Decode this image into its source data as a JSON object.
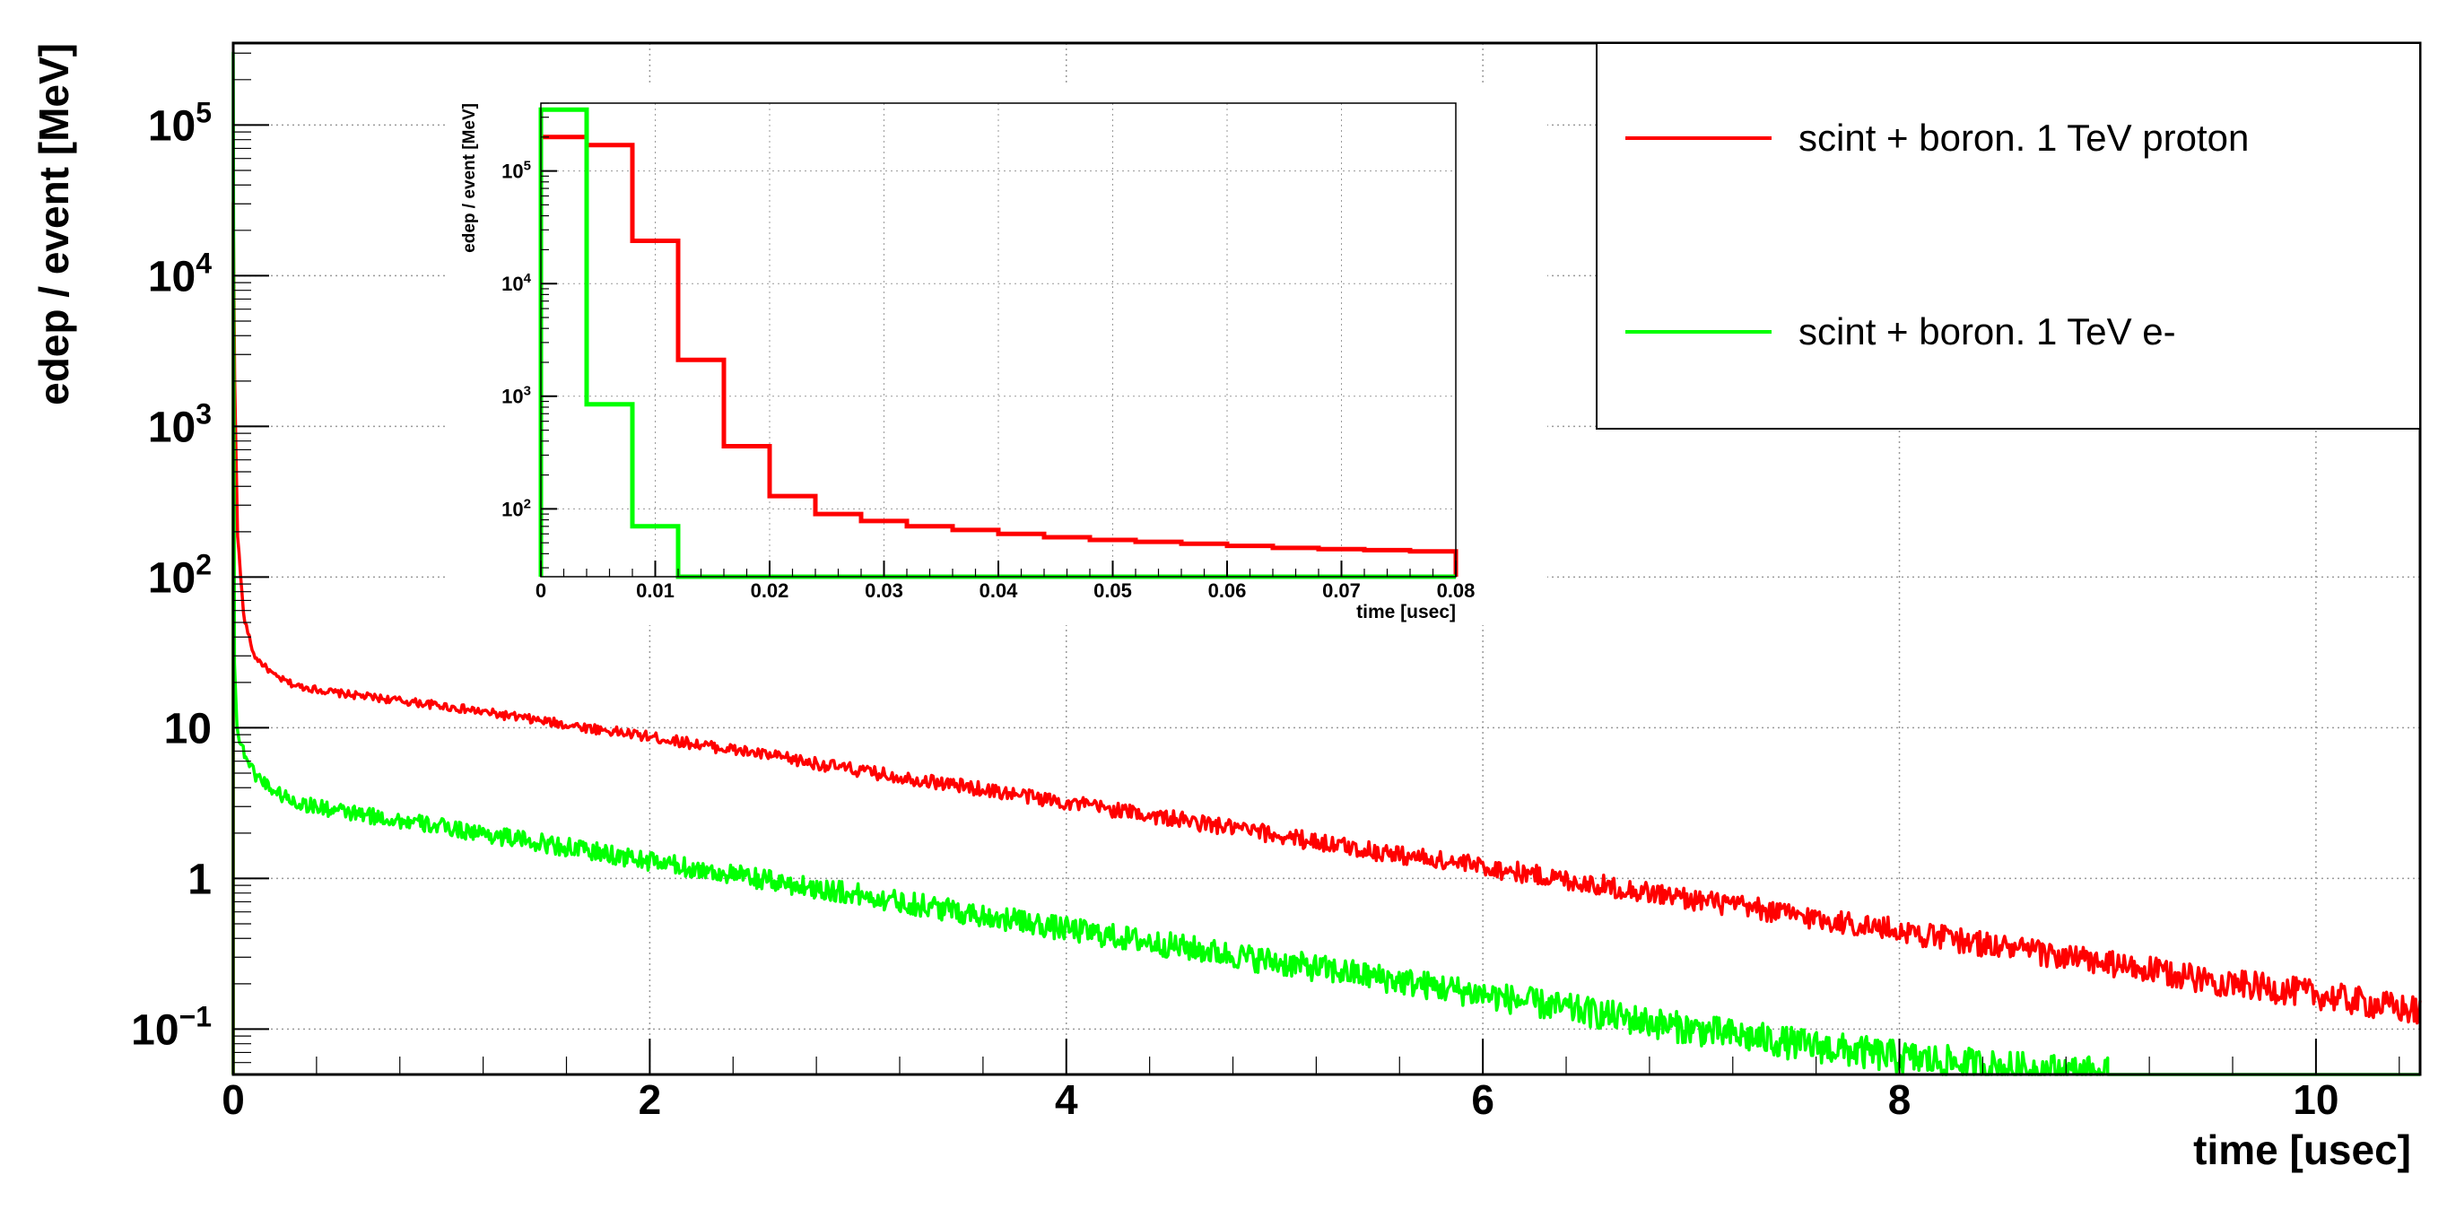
{
  "chart_data": [
    {
      "type": "line",
      "role": "main",
      "xlabel": "time [usec]",
      "ylabel": "edep / event [MeV]",
      "xlim": [
        0,
        10.5
      ],
      "ylim": [
        0.05,
        350000
      ],
      "yscale": "log",
      "grid": true,
      "x_ticks": [
        0,
        2,
        4,
        6,
        8,
        10
      ],
      "x_tick_labels": [
        "0",
        "2",
        "4",
        "6",
        "8",
        "10"
      ],
      "y_ticks": [
        0.1,
        1,
        10,
        100,
        1000,
        10000,
        100000
      ],
      "y_tick_labels": [
        {
          "base": "10",
          "exp": "−1"
        },
        {
          "base": "1",
          "exp": ""
        },
        {
          "base": "10",
          "exp": ""
        },
        {
          "base": "10",
          "exp": "2"
        },
        {
          "base": "10",
          "exp": "3"
        },
        {
          "base": "10",
          "exp": "4"
        },
        {
          "base": "10",
          "exp": "5"
        }
      ],
      "legend_position": "top-right",
      "series": [
        {
          "name": "scint + boron. 1 TeV proton",
          "color": "#ff0000",
          "x": [
            0,
            0.005,
            0.02,
            0.05,
            0.1,
            0.2,
            0.3,
            0.5,
            1,
            1.5,
            2,
            2.5,
            3,
            3.5,
            4,
            4.5,
            5,
            5.5,
            6,
            6.5,
            7,
            7.5,
            8,
            8.5,
            9,
            9.5,
            10,
            10.5
          ],
          "y": [
            30000,
            3000,
            200,
            55,
            30,
            22,
            19,
            17,
            14,
            11,
            8.7,
            6.8,
            5.2,
            4.1,
            3.2,
            2.5,
            1.95,
            1.5,
            1.2,
            0.93,
            0.73,
            0.57,
            0.45,
            0.35,
            0.27,
            0.21,
            0.17,
            0.13
          ]
        },
        {
          "name": "scint + boron. 1 TeV e-",
          "color": "#00ff00",
          "x": [
            0,
            0.005,
            0.02,
            0.05,
            0.1,
            0.2,
            0.3,
            0.5,
            1,
            1.5,
            2,
            2.5,
            3,
            3.5,
            4,
            4.5,
            5,
            5.5,
            6,
            6.5,
            7,
            7.5,
            8,
            8.5,
            9
          ],
          "y": [
            300000,
            30,
            9,
            7,
            5,
            3.8,
            3.2,
            2.8,
            2.2,
            1.7,
            1.3,
            1.0,
            0.78,
            0.6,
            0.46,
            0.36,
            0.28,
            0.22,
            0.17,
            0.13,
            0.1,
            0.08,
            0.065,
            0.055,
            0.05
          ]
        }
      ]
    },
    {
      "type": "line",
      "role": "inset",
      "xlabel": "time [usec]",
      "ylabel": "edep / event [MeV]",
      "xlim": [
        0,
        0.08
      ],
      "ylim": [
        25,
        400000
      ],
      "yscale": "log",
      "grid": true,
      "x_ticks": [
        0,
        0.01,
        0.02,
        0.03,
        0.04,
        0.05,
        0.06,
        0.07,
        0.08
      ],
      "x_tick_labels": [
        "0",
        "0.01",
        "0.02",
        "0.03",
        "0.04",
        "0.05",
        "0.06",
        "0.07",
        "0.08"
      ],
      "y_ticks": [
        100,
        1000,
        10000,
        100000
      ],
      "y_tick_labels": [
        {
          "base": "10",
          "exp": "2"
        },
        {
          "base": "10",
          "exp": "3"
        },
        {
          "base": "10",
          "exp": "4"
        },
        {
          "base": "10",
          "exp": "5"
        }
      ],
      "series": [
        {
          "name": "scint + boron. 1 TeV proton",
          "color": "#ff0000",
          "bin_edges": [
            0,
            0.004,
            0.008,
            0.012,
            0.016,
            0.02,
            0.024,
            0.028,
            0.032,
            0.036,
            0.04,
            0.044,
            0.048,
            0.052,
            0.056,
            0.06,
            0.064,
            0.068,
            0.072,
            0.076,
            0.08
          ],
          "values": [
            200000,
            170000,
            24000,
            2100,
            360,
            130,
            90,
            78,
            70,
            65,
            60,
            56,
            53,
            51,
            49,
            47,
            45,
            44,
            43,
            42
          ]
        },
        {
          "name": "scint + boron. 1 TeV e-",
          "color": "#00ff00",
          "bin_edges": [
            0,
            0.004,
            0.008,
            0.012,
            0.016
          ],
          "values": [
            350000,
            850,
            70,
            25
          ]
        }
      ]
    }
  ],
  "legend": {
    "entries": [
      {
        "label": "scint + boron. 1 TeV proton",
        "color": "#ff0000"
      },
      {
        "label": "scint + boron. 1 TeV e-",
        "color": "#00ff00"
      }
    ]
  }
}
